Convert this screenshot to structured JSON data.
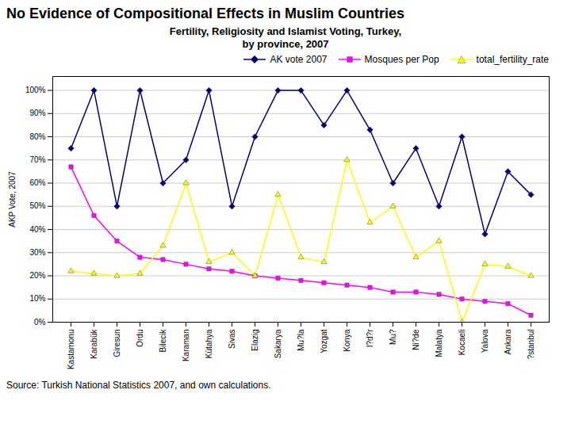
{
  "chart_data": {
    "type": "line",
    "title": "No Evidence of Compositional Effects in Muslim Countries",
    "subtitle": "Fertility, Religiosity and Islamist Voting, Turkey,\nby province, 2007",
    "caption": "Source: Turkish National Statistics 2007, and own calculations.",
    "ylabel": "AKP Vote, 2007",
    "categories": [
      "Kastamonu",
      "Karabük",
      "Giresun",
      "Ordu",
      "Bilecik",
      "Karaman",
      "Kütahya",
      "Sivas",
      "Elazig",
      "Sakarya",
      "Mu?la",
      "Yozgat",
      "Konya",
      "I?d?r",
      "Mu?",
      "Ni?de",
      "Malatya",
      "Kocaeli",
      "Yalova",
      "Ankara",
      "?stanbul"
    ],
    "series": [
      {
        "name": "AK vote 2007",
        "color": "#000080",
        "marker": "diamond",
        "values": [
          75,
          100,
          50,
          100,
          60,
          70,
          100,
          50,
          80,
          100,
          100,
          85,
          100,
          83,
          60,
          75,
          50,
          80,
          38,
          65,
          55
        ]
      },
      {
        "name": "Mosques per Pop",
        "color": "#FF00FF",
        "marker": "square",
        "values": [
          67,
          46,
          35,
          28,
          27,
          25,
          23,
          22,
          20,
          19,
          18,
          17,
          16,
          15,
          13,
          13,
          12,
          10,
          9,
          8,
          3
        ]
      },
      {
        "name": "total_fertility_rate",
        "color": "#FFFF00",
        "marker": "triangle",
        "values": [
          22,
          21,
          20,
          21,
          33,
          60,
          26,
          30,
          20,
          55,
          28,
          26,
          70,
          43,
          50,
          28,
          35,
          0,
          25,
          24,
          20
        ]
      }
    ],
    "ylim": [
      0,
      106
    ],
    "yticks": [
      {
        "value": 0,
        "label": "0%"
      },
      {
        "value": 10,
        "label": "10%"
      },
      {
        "value": 20,
        "label": "20%"
      },
      {
        "value": 30,
        "label": "30%"
      },
      {
        "value": 40,
        "label": "40%"
      },
      {
        "value": 50,
        "label": "50%"
      },
      {
        "value": 60,
        "label": "60%"
      },
      {
        "value": 70,
        "label": "70%"
      },
      {
        "value": 80,
        "label": "80%"
      },
      {
        "value": 90,
        "label": "90%"
      },
      {
        "value": 100,
        "label": "100%"
      }
    ],
    "grid": true,
    "legend": "upper right"
  }
}
